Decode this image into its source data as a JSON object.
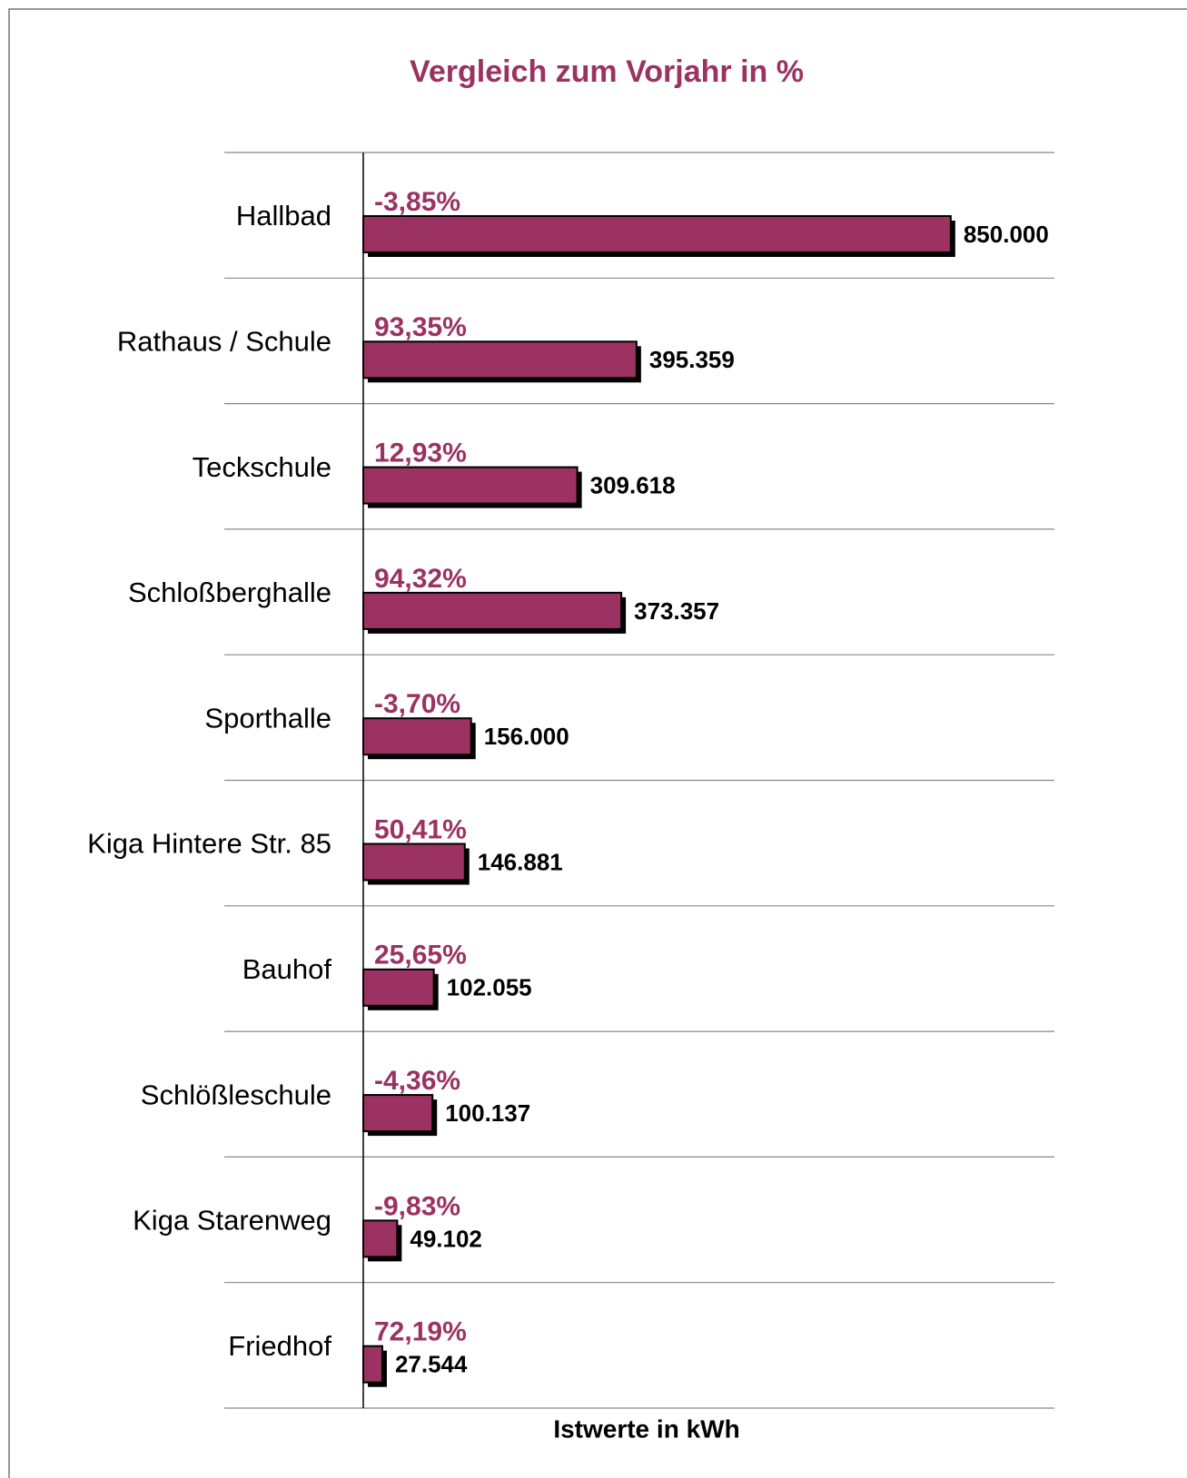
{
  "chart_data": {
    "type": "bar",
    "orientation": "horizontal",
    "title": "Vergleich zum Vorjahr in %",
    "xlabel": "Istwerte in kWh",
    "categories": [
      "Hallbad",
      "Rathaus / Schule",
      "Teckschule",
      "Schloßberghalle",
      "Sporthalle",
      "Kiga Hintere Str. 85",
      "Bauhof",
      "Schlößleschule",
      "Kiga Starenweg",
      "Friedhof"
    ],
    "values": [
      850000,
      395359,
      309618,
      373357,
      156000,
      146881,
      102055,
      100137,
      49102,
      27544
    ],
    "value_labels": [
      "850.000",
      "395.359",
      "309.618",
      "373.357",
      "156.000",
      "146.881",
      "102.055",
      "100.137",
      "49.102",
      "27.544"
    ],
    "annotations": [
      "-3,85%",
      "93,35%",
      "12,93%",
      "94,32%",
      "-3,70%",
      "50,41%",
      "25,65%",
      "-4,36%",
      "-9,83%",
      "72,19%"
    ],
    "color": "#9b3262",
    "xlim": [
      0,
      1000000
    ],
    "grid": true
  }
}
